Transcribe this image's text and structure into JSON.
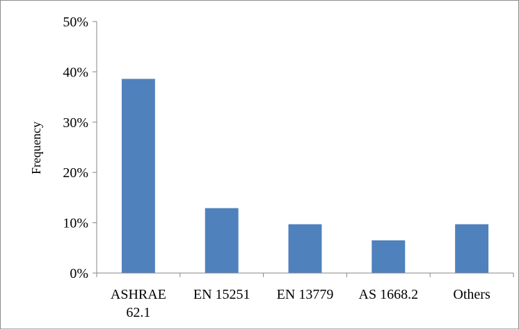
{
  "chart_data": {
    "type": "bar",
    "title": "",
    "xlabel": "",
    "ylabel": "Frequency",
    "categories": [
      [
        "ASHRAE",
        "62.1"
      ],
      [
        "EN 15251"
      ],
      [
        "EN 13779"
      ],
      [
        "AS 1668.2"
      ],
      [
        "Others"
      ]
    ],
    "values": [
      0.386,
      0.129,
      0.097,
      0.065,
      0.097
    ],
    "ylim": [
      0,
      0.5
    ],
    "yticks": [
      0,
      0.1,
      0.2,
      0.3,
      0.4,
      0.5
    ],
    "ytick_labels": [
      "0%",
      "10%",
      "20%",
      "30%",
      "40%",
      "50%"
    ],
    "grid": false,
    "legend": "none",
    "bar_color": "#4f81bd"
  }
}
